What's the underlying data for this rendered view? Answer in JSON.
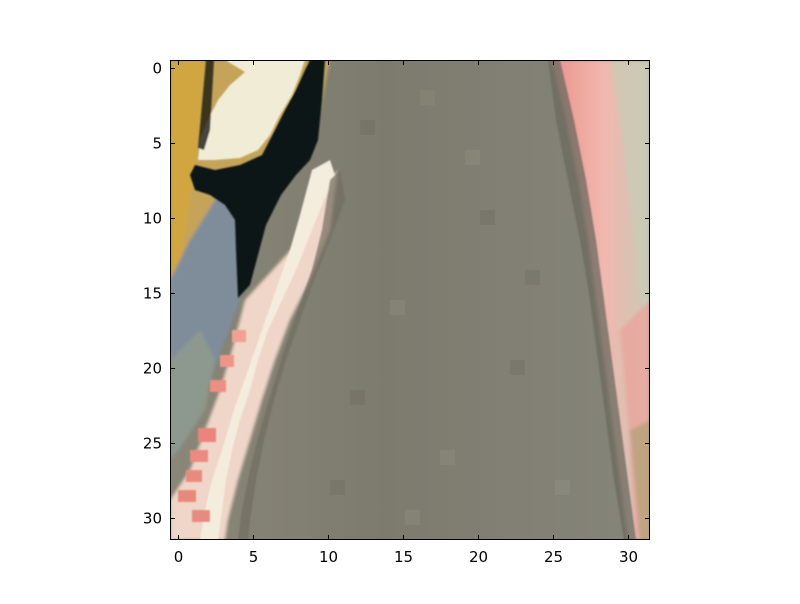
{
  "image_plot": {
    "type": "image",
    "x_ticks": [
      "0",
      "5",
      "10",
      "15",
      "20",
      "25",
      "30"
    ],
    "y_ticks": [
      "0",
      "5",
      "10",
      "15",
      "20",
      "25",
      "30"
    ],
    "xlim": [
      -0.5,
      31.5
    ],
    "ylim": [
      31.5,
      -0.5
    ],
    "colors": {
      "background": "#ffffff",
      "axes": "#000000",
      "road": "#7f7d70",
      "road_dark": "#6e6d62",
      "road_light": "#8b8a7c",
      "curb_white": "#f1ece0",
      "curb_red": "#e77b79",
      "curb_pink": "#f3b0aa",
      "grass_tan": "#c8a75a",
      "grass_gold": "#d2a845",
      "shadow_black": "#0b1518",
      "gray_blue": "#7d8da0",
      "gray_green": "#8f9a8d",
      "salmon": "#e68f83",
      "peach": "#d9c5aa",
      "sand": "#cdb188"
    }
  }
}
